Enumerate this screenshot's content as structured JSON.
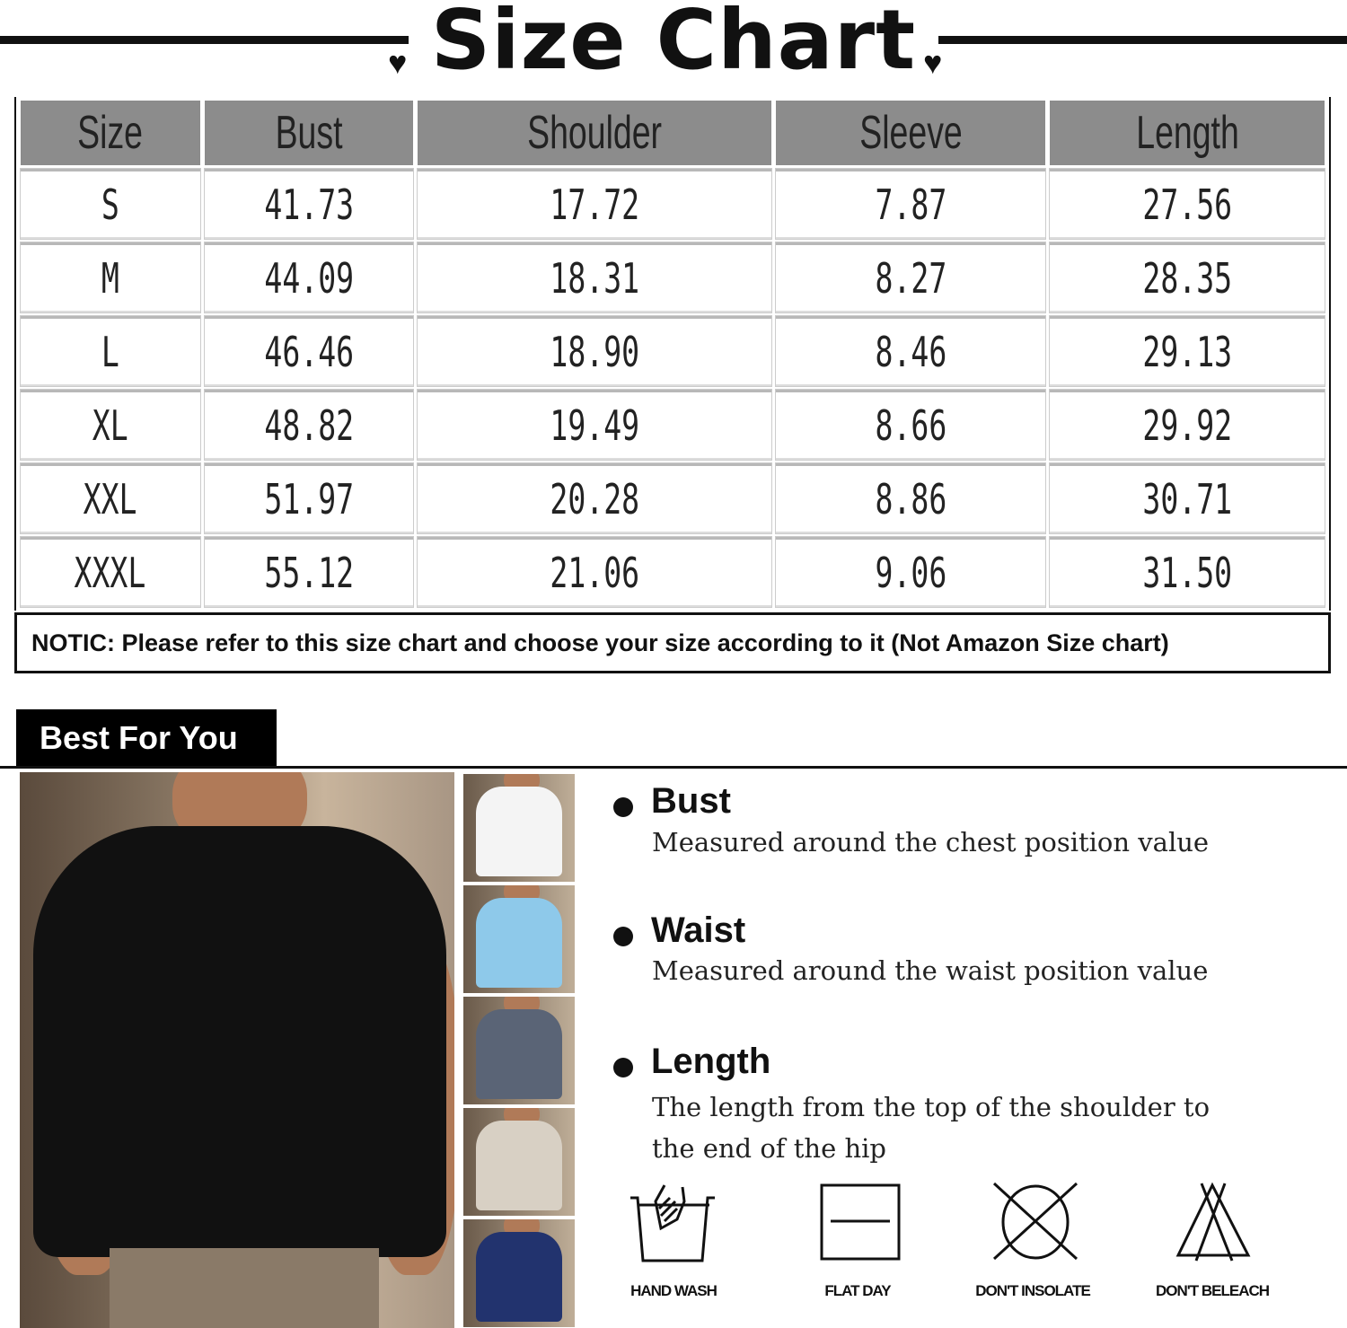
{
  "title": "Size Chart",
  "table": {
    "headers": [
      "Size",
      "Bust",
      "Shoulder",
      "Sleeve",
      "Length"
    ],
    "rows": [
      [
        "S",
        "41.73",
        "17.72",
        "7.87",
        "27.56"
      ],
      [
        "M",
        "44.09",
        "18.31",
        "8.27",
        "28.35"
      ],
      [
        "L",
        "46.46",
        "18.90",
        "8.46",
        "29.13"
      ],
      [
        "XL",
        "48.82",
        "19.49",
        "8.66",
        "29.92"
      ],
      [
        "XXL",
        "51.97",
        "20.28",
        "8.86",
        "30.71"
      ],
      [
        "XXXL",
        "55.12",
        "21.06",
        "9.06",
        "31.50"
      ]
    ]
  },
  "notice": "NOTIC: Please refer to this size chart and choose your size according to it (Not Amazon Size chart)",
  "section_tab": "Best For You",
  "color_variants": [
    "#f4f4f4",
    "#8ec9ea",
    "#5a6476",
    "#d8d0c4",
    "#22336e"
  ],
  "main_shirt_color": "#111111",
  "measurements": [
    {
      "label": "Bust",
      "desc": "Measured around the chest position value"
    },
    {
      "label": "Waist",
      "desc": "Measured around the waist position value"
    },
    {
      "label": "Length",
      "desc": "The length from the top of the shoulder to the end of the hip"
    }
  ],
  "care": [
    {
      "icon": "hand-wash-icon",
      "label": "HAND WASH"
    },
    {
      "icon": "flat-dry-icon",
      "label": "FLAT DAY"
    },
    {
      "icon": "dont-insolate-icon",
      "label": "DON'T INSOLATE"
    },
    {
      "icon": "dont-bleach-icon",
      "label": "DON'T BELEACH"
    }
  ]
}
